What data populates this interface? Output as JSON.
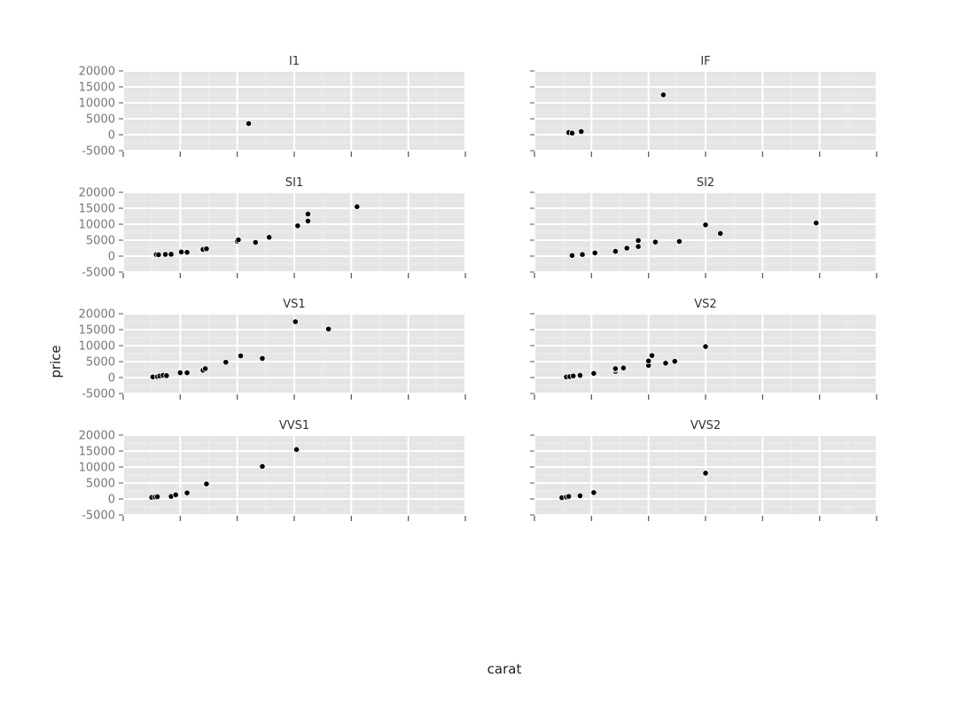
{
  "chart_data": {
    "type": "scatter",
    "xlabel": "carat",
    "ylabel": "price",
    "ylim": [
      -5000,
      20000
    ],
    "y_ticks": [
      "20000",
      "15000",
      "10000",
      "5000",
      "0",
      "-5000"
    ],
    "xlim": [
      0.0,
      3.0
    ],
    "facets": [
      {
        "title": "I1",
        "x": [
          1.1
        ],
        "y": [
          3500
        ]
      },
      {
        "title": "IF",
        "x": [
          0.3,
          0.33,
          0.41,
          1.13
        ],
        "y": [
          700,
          500,
          1000,
          12500
        ]
      },
      {
        "title": "SI1",
        "x": [
          0.29,
          0.31,
          0.37,
          0.42,
          0.51,
          0.56,
          0.7,
          0.73,
          1.0,
          1.01,
          1.16,
          1.28,
          1.53,
          1.62,
          1.62,
          2.05
        ],
        "y": [
          500,
          450,
          550,
          600,
          1300,
          1200,
          2100,
          2300,
          4700,
          5100,
          4300,
          5900,
          9500,
          11000,
          13200,
          15500
        ]
      },
      {
        "title": "SI2",
        "x": [
          0.33,
          0.42,
          0.53,
          0.71,
          0.81,
          0.91,
          0.91,
          1.06,
          1.27,
          1.5,
          1.63,
          2.47
        ],
        "y": [
          200,
          500,
          1000,
          1500,
          2500,
          3000,
          4900,
          4400,
          4600,
          9800,
          7100,
          10400
        ]
      },
      {
        "title": "VS1",
        "x": [
          0.26,
          0.3,
          0.32,
          0.35,
          0.38,
          0.5,
          0.56,
          0.7,
          0.72,
          0.9,
          1.03,
          1.22,
          1.51,
          1.8
        ],
        "y": [
          200,
          300,
          500,
          700,
          600,
          1500,
          1500,
          2300,
          2800,
          4800,
          6800,
          6000,
          17500,
          15200
        ]
      },
      {
        "title": "VS2",
        "x": [
          0.28,
          0.31,
          0.34,
          0.4,
          0.52,
          0.71,
          0.71,
          0.71,
          0.78,
          1.0,
          1.0,
          1.03,
          1.15,
          1.23,
          1.5
        ],
        "y": [
          200,
          300,
          500,
          700,
          1300,
          1900,
          2500,
          2800,
          3000,
          3800,
          5200,
          6900,
          4500,
          5100,
          9700
        ]
      },
      {
        "title": "VVS1",
        "x": [
          0.25,
          0.28,
          0.3,
          0.42,
          0.46,
          0.56,
          0.73,
          1.22,
          1.52
        ],
        "y": [
          500,
          600,
          700,
          800,
          1300,
          1900,
          4700,
          10200,
          15500
        ]
      },
      {
        "title": "VVS2",
        "x": [
          0.24,
          0.28,
          0.3,
          0.4,
          0.52,
          1.5
        ],
        "y": [
          400,
          600,
          800,
          1000,
          2000,
          8100
        ]
      }
    ]
  }
}
